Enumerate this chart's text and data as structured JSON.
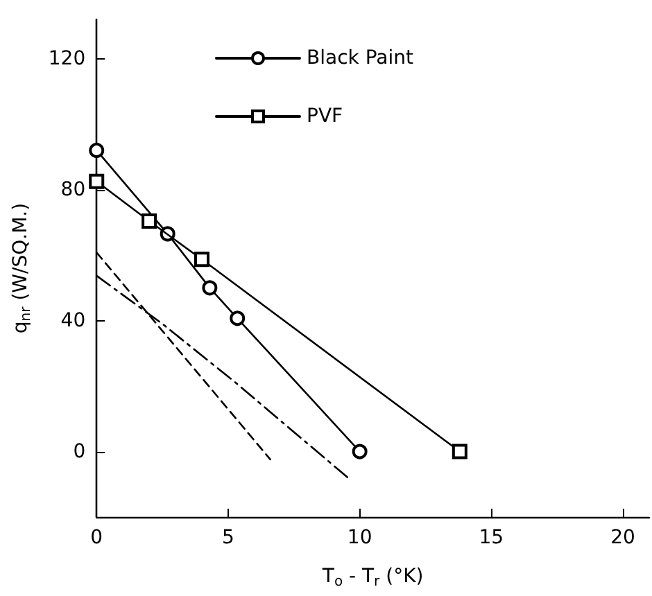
{
  "chart_data": {
    "type": "line",
    "xlabel": "T$_{o}$ - T$_{r}$ (°K)",
    "ylabel": "q$_{nr}$ (W/SQ.M.)",
    "series": [
      {
        "color": "#000000",
        "line_style": "dashed",
        "marker": "none",
        "x": [
          0,
          6.6
        ],
        "values": [
          60.8,
          -2.4
        ]
      },
      {
        "name": "Black Paint",
        "color": "#000000",
        "line_style": "solid",
        "marker": "circle",
        "x": [
          0,
          2.7,
          4.3,
          5.35,
          10
        ],
        "values": [
          92,
          66.5,
          50,
          40.7,
          0
        ]
      },
      {
        "color": "#000000",
        "line_style": "dashdot",
        "marker": "none",
        "x": [
          0,
          2.5,
          5.2,
          9.55
        ],
        "values": [
          53.7,
          39,
          21.6,
          -8
        ]
      },
      {
        "name": "PVF",
        "color": "#000000",
        "line_style": "solid",
        "marker": "square",
        "x": [
          0,
          2,
          4,
          13.8
        ],
        "values": [
          82.5,
          70.4,
          58.7,
          0
        ]
      }
    ],
    "xlim": [
      0,
      21
    ],
    "xticks": [
      0,
      5,
      10,
      15,
      20
    ],
    "ylim": [
      -20,
      132
    ],
    "yticks": [
      0,
      40,
      80,
      120
    ],
    "grid": false,
    "legend": "top"
  }
}
